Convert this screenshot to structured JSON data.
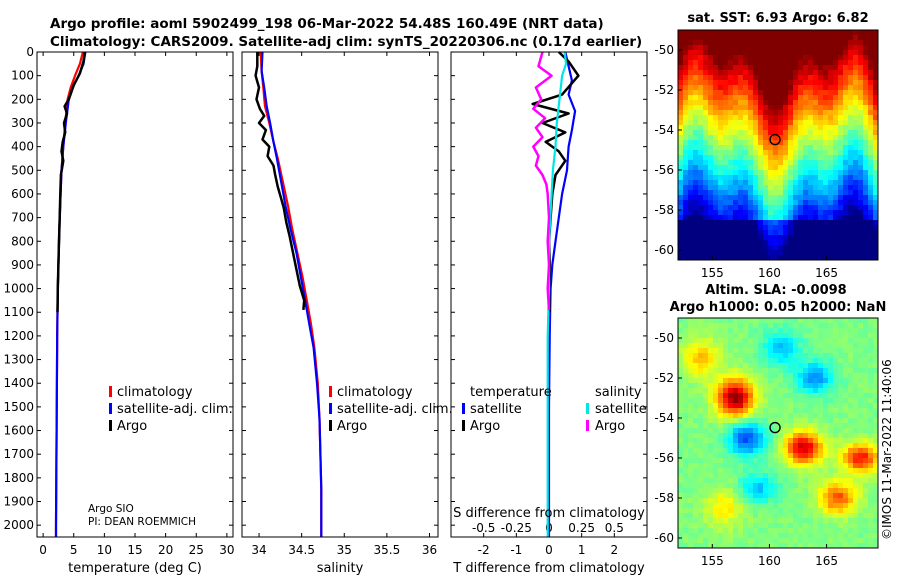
{
  "header": {
    "line1": "Argo profile: aoml 5902499_198 06-Mar-2022 54.48S 160.49E (NRT data)",
    "line2": "Climatology: CARS2009. Satellite-adj clim: synTS_20220306.nc (0.17d earlier)"
  },
  "colors": {
    "climatology": "#ff0000",
    "satellite": "#0000ff",
    "argo": "#000000",
    "sat_salinity": "#00e5e5",
    "argo_salinity": "#ff00ff"
  },
  "credit": {
    "line1": "Argo SIO",
    "line2": "PI: DEAN ROEMMICH"
  },
  "timestamp": "©IMOS 11-Mar-2022 11:40:06",
  "depth_ticks": [
    0,
    100,
    200,
    300,
    400,
    500,
    600,
    700,
    800,
    900,
    1000,
    1100,
    1200,
    1300,
    1400,
    1500,
    1600,
    1700,
    1800,
    1900,
    2000
  ],
  "chart_data": [
    {
      "type": "line",
      "id": "temperature",
      "xlabel": "temperature (deg C)",
      "ylabel": "",
      "xlim": [
        -1,
        31
      ],
      "ylim": [
        2050,
        0
      ],
      "xticks": [
        0,
        5,
        10,
        15,
        20,
        25,
        30
      ],
      "xtick_labels": [
        "0",
        "5",
        "10",
        "15",
        "20",
        "25",
        "30"
      ],
      "legend": [
        "climatology",
        "satellite-adj. clim.",
        "Argo"
      ],
      "series": [
        {
          "name": "climatology",
          "points": [
            [
              6.5,
              0
            ],
            [
              6.0,
              50
            ],
            [
              5.2,
              100
            ],
            [
              4.5,
              150
            ],
            [
              4.0,
              200
            ],
            [
              3.6,
              300
            ],
            [
              3.3,
              400
            ],
            [
              3.0,
              500
            ],
            [
              2.85,
              600
            ],
            [
              2.7,
              700
            ],
            [
              2.6,
              800
            ],
            [
              2.5,
              900
            ],
            [
              2.4,
              1000
            ],
            [
              2.35,
              1100
            ],
            [
              2.3,
              1200
            ],
            [
              2.25,
              1400
            ],
            [
              2.2,
              1600
            ],
            [
              2.15,
              1800
            ],
            [
              2.1,
              2000
            ],
            [
              2.1,
              2050
            ]
          ]
        },
        {
          "name": "satellite-adj. clim.",
          "points": [
            [
              6.9,
              0
            ],
            [
              6.6,
              50
            ],
            [
              5.8,
              100
            ],
            [
              4.8,
              150
            ],
            [
              4.2,
              200
            ],
            [
              3.7,
              300
            ],
            [
              3.3,
              400
            ],
            [
              3.0,
              500
            ],
            [
              2.85,
              600
            ],
            [
              2.7,
              700
            ],
            [
              2.6,
              800
            ],
            [
              2.5,
              900
            ],
            [
              2.4,
              1000
            ],
            [
              2.35,
              1100
            ],
            [
              2.3,
              1200
            ],
            [
              2.25,
              1400
            ],
            [
              2.2,
              1600
            ],
            [
              2.15,
              1800
            ],
            [
              2.1,
              2000
            ],
            [
              2.1,
              2050
            ]
          ]
        },
        {
          "name": "Argo",
          "points": [
            [
              6.8,
              0
            ],
            [
              6.6,
              40
            ],
            [
              6.0,
              90
            ],
            [
              5.0,
              140
            ],
            [
              4.2,
              200
            ],
            [
              3.5,
              230
            ],
            [
              3.9,
              260
            ],
            [
              3.4,
              300
            ],
            [
              3.6,
              340
            ],
            [
              3.2,
              380
            ],
            [
              3.0,
              420
            ],
            [
              3.3,
              460
            ],
            [
              2.9,
              520
            ],
            [
              2.8,
              600
            ],
            [
              2.7,
              700
            ],
            [
              2.6,
              800
            ],
            [
              2.5,
              900
            ],
            [
              2.4,
              1000
            ],
            [
              2.35,
              1100
            ]
          ]
        }
      ]
    },
    {
      "type": "line",
      "id": "salinity",
      "xlabel": "salinity",
      "ylabel": "",
      "xlim": [
        33.8,
        36.1
      ],
      "ylim": [
        2050,
        0
      ],
      "xticks": [
        34,
        34.5,
        35,
        35.5,
        36
      ],
      "xtick_labels": [
        "34",
        "34.5",
        "35",
        "35.5",
        "36"
      ],
      "legend": [
        "climatology",
        "satellite-adj. clim.",
        "Argo"
      ],
      "series": [
        {
          "name": "climatology",
          "points": [
            [
              34.02,
              0
            ],
            [
              34.03,
              80
            ],
            [
              34.05,
              150
            ],
            [
              34.07,
              230
            ],
            [
              34.12,
              300
            ],
            [
              34.17,
              380
            ],
            [
              34.22,
              450
            ],
            [
              34.28,
              550
            ],
            [
              34.34,
              650
            ],
            [
              34.39,
              750
            ],
            [
              34.45,
              850
            ],
            [
              34.51,
              950
            ],
            [
              34.56,
              1050
            ],
            [
              34.61,
              1150
            ],
            [
              34.65,
              1250
            ],
            [
              34.69,
              1400
            ],
            [
              34.71,
              1550
            ],
            [
              34.72,
              1700
            ],
            [
              34.73,
              1850
            ],
            [
              34.73,
              2050
            ]
          ]
        },
        {
          "name": "satellite-adj. clim.",
          "points": [
            [
              34.04,
              0
            ],
            [
              34.03,
              80
            ],
            [
              34.06,
              150
            ],
            [
              34.09,
              230
            ],
            [
              34.13,
              300
            ],
            [
              34.17,
              380
            ],
            [
              34.21,
              450
            ],
            [
              34.26,
              550
            ],
            [
              34.31,
              650
            ],
            [
              34.37,
              750
            ],
            [
              34.44,
              850
            ],
            [
              34.49,
              950
            ],
            [
              34.54,
              1050
            ],
            [
              34.59,
              1150
            ],
            [
              34.64,
              1250
            ],
            [
              34.68,
              1400
            ],
            [
              34.71,
              1550
            ],
            [
              34.72,
              1700
            ],
            [
              34.73,
              1850
            ],
            [
              34.73,
              2050
            ]
          ]
        },
        {
          "name": "Argo",
          "points": [
            [
              33.98,
              0
            ],
            [
              33.98,
              60
            ],
            [
              33.96,
              100
            ],
            [
              34.0,
              150
            ],
            [
              33.97,
              200
            ],
            [
              34.01,
              240
            ],
            [
              34.06,
              270
            ],
            [
              34.0,
              300
            ],
            [
              34.08,
              330
            ],
            [
              34.04,
              370
            ],
            [
              34.12,
              400
            ],
            [
              34.1,
              440
            ],
            [
              34.17,
              480
            ],
            [
              34.19,
              520
            ],
            [
              34.22,
              570
            ],
            [
              34.26,
              620
            ],
            [
              34.29,
              660
            ],
            [
              34.32,
              720
            ],
            [
              34.36,
              780
            ],
            [
              34.4,
              850
            ],
            [
              34.44,
              920
            ],
            [
              34.48,
              990
            ],
            [
              34.53,
              1050
            ],
            [
              34.52,
              1090
            ]
          ]
        }
      ]
    },
    {
      "type": "line",
      "id": "difference",
      "xlabel": "T difference from climatology",
      "x2label": "S difference from climatology",
      "xlim": [
        -3,
        3
      ],
      "ylim": [
        2050,
        0
      ],
      "xticks": [
        -2,
        -1,
        0,
        1,
        2
      ],
      "xtick_labels": [
        "-2",
        "-1",
        "0",
        "1",
        "2"
      ],
      "x2ticks": [
        -0.5,
        -0.25,
        0,
        0.25,
        0.5
      ],
      "x2tick_labels": [
        "-0.5",
        "-0.25",
        "0",
        "0.25",
        "0.5"
      ],
      "x2lim": [
        -0.75,
        0.75
      ],
      "legend_title_temp": "temperature",
      "legend_title_sal": "salinity",
      "legend": [
        "satellite",
        "Argo",
        "satellite",
        "Argo"
      ],
      "series": [
        {
          "name": "temperature satellite",
          "axis": "T",
          "points": [
            [
              0.5,
              0
            ],
            [
              0.6,
              60
            ],
            [
              0.7,
              120
            ],
            [
              0.6,
              180
            ],
            [
              0.8,
              250
            ],
            [
              0.7,
              330
            ],
            [
              0.6,
              400
            ],
            [
              0.55,
              500
            ],
            [
              0.4,
              600
            ],
            [
              0.3,
              700
            ],
            [
              0.2,
              800
            ],
            [
              0.1,
              900
            ],
            [
              0.05,
              1000
            ],
            [
              0.02,
              1200
            ],
            [
              0.0,
              1500
            ],
            [
              0.0,
              2050
            ]
          ]
        },
        {
          "name": "temperature Argo",
          "axis": "T",
          "points": [
            [
              0.3,
              0
            ],
            [
              0.6,
              40
            ],
            [
              0.9,
              100
            ],
            [
              0.4,
              180
            ],
            [
              -0.5,
              220
            ],
            [
              0.6,
              260
            ],
            [
              -0.2,
              300
            ],
            [
              0.5,
              340
            ],
            [
              -0.1,
              380
            ],
            [
              0.3,
              420
            ],
            [
              0.5,
              460
            ],
            [
              0.2,
              520
            ],
            [
              0.1,
              600
            ],
            [
              0.05,
              700
            ],
            [
              0.0,
              800
            ],
            [
              0.02,
              900
            ],
            [
              0.0,
              1000
            ],
            [
              0.02,
              1100
            ]
          ]
        },
        {
          "name": "salinity satellite",
          "axis": "S",
          "points": [
            [
              0.12,
              0
            ],
            [
              0.13,
              50
            ],
            [
              0.1,
              100
            ],
            [
              0.08,
              200
            ],
            [
              0.06,
              300
            ],
            [
              0.05,
              400
            ],
            [
              0.03,
              500
            ],
            [
              0.02,
              600
            ],
            [
              0.01,
              700
            ],
            [
              0.0,
              800
            ],
            [
              0.0,
              1000
            ],
            [
              -0.01,
              1200
            ],
            [
              -0.01,
              1500
            ],
            [
              -0.01,
              2050
            ]
          ]
        },
        {
          "name": "salinity Argo",
          "axis": "S",
          "points": [
            [
              -0.05,
              0
            ],
            [
              -0.08,
              60
            ],
            [
              0.02,
              100
            ],
            [
              -0.1,
              150
            ],
            [
              -0.06,
              200
            ],
            [
              -0.12,
              240
            ],
            [
              -0.03,
              280
            ],
            [
              -0.1,
              320
            ],
            [
              -0.05,
              360
            ],
            [
              -0.12,
              400
            ],
            [
              -0.08,
              440
            ],
            [
              -0.1,
              480
            ],
            [
              -0.05,
              520
            ],
            [
              -0.02,
              560
            ],
            [
              -0.01,
              600
            ],
            [
              0.0,
              700
            ],
            [
              -0.01,
              800
            ],
            [
              0.0,
              900
            ],
            [
              -0.01,
              1000
            ],
            [
              0.0,
              1090
            ]
          ]
        }
      ]
    },
    {
      "type": "heatmap",
      "id": "sst",
      "title": "sat. SST: 6.93 Argo: 6.82",
      "xlim": [
        152,
        169.5
      ],
      "ylim": [
        -60.5,
        -49
      ],
      "xticks": [
        155,
        160,
        165
      ],
      "xtick_labels": [
        "155",
        "160",
        "165"
      ],
      "yticks": [
        -50,
        -52,
        -54,
        -56,
        -58,
        -60
      ],
      "ytick_labels": [
        "-50",
        "-52",
        "-54",
        "-56",
        "-58",
        "-60"
      ],
      "float_position": [
        160.49,
        -54.48
      ]
    },
    {
      "type": "heatmap",
      "id": "sla",
      "title_line1": "Altim. SLA: -0.0098",
      "title_line2": "Argo h1000: 0.05 h2000: NaN",
      "xlim": [
        152,
        169.5
      ],
      "ylim": [
        -60.5,
        -49
      ],
      "xticks": [
        155,
        160,
        165
      ],
      "xtick_labels": [
        "155",
        "160",
        "165"
      ],
      "yticks": [
        -50,
        -52,
        -54,
        -56,
        -58,
        -60
      ],
      "ytick_labels": [
        "-50",
        "-52",
        "-54",
        "-56",
        "-58",
        "-60"
      ],
      "float_position": [
        160.49,
        -54.48
      ]
    }
  ]
}
